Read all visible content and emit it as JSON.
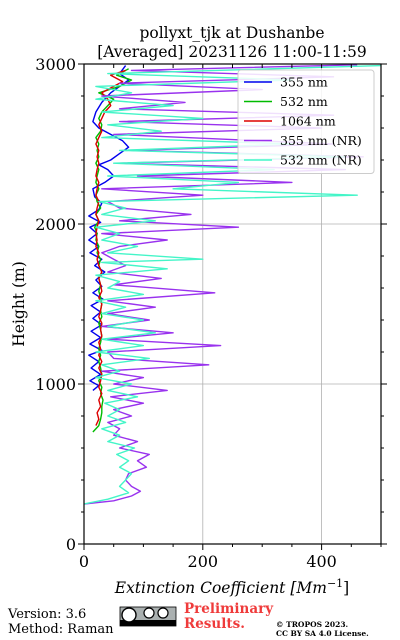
{
  "chart_data": {
    "type": "line",
    "title": "pollyxt_tjk at Dushanbe",
    "subtitle": "[Averaged] 20231126 11:00-11:59",
    "xlabel": "Extinction Coefficient [Mm",
    "xlabel_sup": "−1",
    "xlabel_end": "]",
    "ylabel": "Height (m)",
    "xlim": [
      0,
      500
    ],
    "ylim": [
      0,
      3000
    ],
    "xticks": [
      "0",
      "200",
      "400"
    ],
    "xtick_values": [
      0,
      200,
      400
    ],
    "yticks": [
      "0",
      "1000",
      "2000",
      "3000"
    ],
    "ytick_values": [
      0,
      1000,
      2000,
      3000
    ],
    "grid": true,
    "legend_position": "top-right",
    "series": [
      {
        "name": "355 nm",
        "color": "#0000ee",
        "points": [
          [
            15,
            960
          ],
          [
            25,
            990
          ],
          [
            10,
            1020
          ],
          [
            28,
            1060
          ],
          [
            12,
            1100
          ],
          [
            25,
            1140
          ],
          [
            8,
            1180
          ],
          [
            30,
            1210
          ],
          [
            10,
            1250
          ],
          [
            28,
            1290
          ],
          [
            12,
            1330
          ],
          [
            30,
            1370
          ],
          [
            15,
            1410
          ],
          [
            28,
            1450
          ],
          [
            12,
            1490
          ],
          [
            32,
            1530
          ],
          [
            15,
            1570
          ],
          [
            30,
            1610
          ],
          [
            20,
            1650
          ],
          [
            35,
            1700
          ],
          [
            18,
            1740
          ],
          [
            30,
            1780
          ],
          [
            10,
            1820
          ],
          [
            25,
            1860
          ],
          [
            8,
            1900
          ],
          [
            22,
            1940
          ],
          [
            10,
            1980
          ],
          [
            28,
            2010
          ],
          [
            8,
            2050
          ],
          [
            25,
            2090
          ],
          [
            30,
            2130
          ],
          [
            18,
            2170
          ],
          [
            15,
            2220
          ],
          [
            35,
            2260
          ],
          [
            50,
            2300
          ],
          [
            40,
            2340
          ],
          [
            25,
            2370
          ],
          [
            45,
            2400
          ],
          [
            60,
            2440
          ],
          [
            75,
            2480
          ],
          [
            65,
            2520
          ],
          [
            45,
            2560
          ],
          [
            25,
            2600
          ],
          [
            15,
            2640
          ],
          [
            20,
            2700
          ],
          [
            30,
            2760
          ],
          [
            45,
            2820
          ],
          [
            60,
            2860
          ],
          [
            75,
            2900
          ],
          [
            60,
            2940
          ],
          [
            70,
            2990
          ]
        ]
      },
      {
        "name": "532 nm",
        "color": "#00bb00",
        "points": [
          [
            15,
            700
          ],
          [
            25,
            740
          ],
          [
            28,
            780
          ],
          [
            30,
            820
          ],
          [
            30,
            860
          ],
          [
            32,
            900
          ],
          [
            28,
            940
          ],
          [
            30,
            980
          ],
          [
            25,
            1020
          ],
          [
            30,
            1060
          ],
          [
            28,
            1100
          ],
          [
            25,
            1140
          ],
          [
            28,
            1180
          ],
          [
            25,
            1220
          ],
          [
            28,
            1260
          ],
          [
            30,
            1300
          ],
          [
            28,
            1340
          ],
          [
            25,
            1380
          ],
          [
            30,
            1420
          ],
          [
            28,
            1460
          ],
          [
            30,
            1500
          ],
          [
            28,
            1540
          ],
          [
            25,
            1580
          ],
          [
            28,
            1620
          ],
          [
            25,
            1660
          ],
          [
            30,
            1700
          ],
          [
            25,
            1740
          ],
          [
            28,
            1780
          ],
          [
            22,
            1820
          ],
          [
            25,
            1860
          ],
          [
            20,
            1900
          ],
          [
            22,
            1940
          ],
          [
            18,
            1980
          ],
          [
            25,
            2020
          ],
          [
            20,
            2060
          ],
          [
            28,
            2100
          ],
          [
            22,
            2140
          ],
          [
            20,
            2180
          ],
          [
            25,
            2220
          ],
          [
            20,
            2260
          ],
          [
            22,
            2300
          ],
          [
            25,
            2340
          ],
          [
            20,
            2380
          ],
          [
            25,
            2420
          ],
          [
            22,
            2460
          ],
          [
            25,
            2500
          ],
          [
            20,
            2540
          ],
          [
            28,
            2580
          ],
          [
            30,
            2620
          ],
          [
            25,
            2660
          ],
          [
            30,
            2700
          ],
          [
            40,
            2740
          ],
          [
            50,
            2780
          ],
          [
            25,
            2820
          ],
          [
            60,
            2860
          ],
          [
            80,
            2900
          ],
          [
            55,
            2930
          ],
          [
            75,
            2970
          ]
        ]
      },
      {
        "name": "1064 nm",
        "color": "#dd0000",
        "points": [
          [
            20,
            740
          ],
          [
            25,
            780
          ],
          [
            22,
            820
          ],
          [
            28,
            860
          ],
          [
            25,
            900
          ],
          [
            30,
            940
          ],
          [
            25,
            980
          ],
          [
            28,
            1020
          ],
          [
            30,
            1060
          ],
          [
            25,
            1100
          ],
          [
            30,
            1140
          ],
          [
            25,
            1180
          ],
          [
            28,
            1220
          ],
          [
            25,
            1260
          ],
          [
            30,
            1300
          ],
          [
            28,
            1340
          ],
          [
            30,
            1380
          ],
          [
            25,
            1420
          ],
          [
            28,
            1460
          ],
          [
            30,
            1500
          ],
          [
            25,
            1540
          ],
          [
            30,
            1580
          ],
          [
            28,
            1620
          ],
          [
            25,
            1660
          ],
          [
            30,
            1700
          ],
          [
            25,
            1740
          ],
          [
            22,
            1780
          ],
          [
            25,
            1820
          ],
          [
            20,
            1860
          ],
          [
            22,
            1900
          ],
          [
            20,
            1940
          ],
          [
            22,
            1980
          ],
          [
            25,
            2020
          ],
          [
            20,
            2060
          ],
          [
            22,
            2100
          ],
          [
            25,
            2140
          ],
          [
            20,
            2180
          ],
          [
            22,
            2220
          ],
          [
            25,
            2260
          ],
          [
            20,
            2300
          ],
          [
            22,
            2340
          ],
          [
            25,
            2380
          ],
          [
            22,
            2420
          ],
          [
            25,
            2460
          ],
          [
            20,
            2500
          ],
          [
            25,
            2540
          ],
          [
            30,
            2580
          ],
          [
            25,
            2620
          ],
          [
            30,
            2660
          ],
          [
            35,
            2700
          ],
          [
            45,
            2740
          ],
          [
            40,
            2780
          ],
          [
            30,
            2820
          ],
          [
            50,
            2860
          ],
          [
            65,
            2890
          ],
          [
            45,
            2930
          ],
          [
            70,
            2960
          ]
        ]
      },
      {
        "name": "355 nm (NR)",
        "color": "#9932ee",
        "points": [
          [
            0,
            250
          ],
          [
            50,
            270
          ],
          [
            80,
            300
          ],
          [
            95,
            330
          ],
          [
            80,
            360
          ],
          [
            70,
            400
          ],
          [
            75,
            440
          ],
          [
            105,
            480
          ],
          [
            90,
            520
          ],
          [
            110,
            560
          ],
          [
            60,
            600
          ],
          [
            90,
            640
          ],
          [
            50,
            680
          ],
          [
            60,
            720
          ],
          [
            40,
            760
          ],
          [
            80,
            800
          ],
          [
            50,
            840
          ],
          [
            100,
            880
          ],
          [
            45,
            920
          ],
          [
            140,
            960
          ],
          [
            50,
            1000
          ],
          [
            100,
            1040
          ],
          [
            30,
            1080
          ],
          [
            210,
            1120
          ],
          [
            50,
            1160
          ],
          [
            40,
            1200
          ],
          [
            230,
            1240
          ],
          [
            40,
            1280
          ],
          [
            150,
            1320
          ],
          [
            30,
            1360
          ],
          [
            110,
            1400
          ],
          [
            40,
            1440
          ],
          [
            120,
            1480
          ],
          [
            40,
            1520
          ],
          [
            220,
            1570
          ],
          [
            50,
            1620
          ],
          [
            130,
            1660
          ],
          [
            40,
            1700
          ],
          [
            70,
            1740
          ],
          [
            50,
            1780
          ],
          [
            30,
            1820
          ],
          [
            60,
            1860
          ],
          [
            140,
            1900
          ],
          [
            30,
            1940
          ],
          [
            260,
            1980
          ],
          [
            60,
            2020
          ],
          [
            180,
            2060
          ],
          [
            60,
            2100
          ],
          [
            40,
            2140
          ],
          [
            200,
            2180
          ],
          [
            30,
            2220
          ],
          [
            350,
            2260
          ],
          [
            90,
            2300
          ],
          [
            440,
            2340
          ],
          [
            60,
            2380
          ],
          [
            470,
            2420
          ],
          [
            80,
            2460
          ],
          [
            420,
            2500
          ],
          [
            50,
            2560
          ],
          [
            400,
            2600
          ],
          [
            60,
            2640
          ],
          [
            420,
            2680
          ],
          [
            60,
            2720
          ],
          [
            170,
            2760
          ],
          [
            30,
            2800
          ],
          [
            300,
            2840
          ],
          [
            60,
            2880
          ],
          [
            420,
            2920
          ],
          [
            80,
            2960
          ],
          [
            460,
            2995
          ]
        ]
      },
      {
        "name": "532 nm (NR)",
        "color": "#44f5c8",
        "points": [
          [
            0,
            250
          ],
          [
            40,
            280
          ],
          [
            75,
            320
          ],
          [
            60,
            360
          ],
          [
            70,
            400
          ],
          [
            80,
            440
          ],
          [
            60,
            480
          ],
          [
            75,
            520
          ],
          [
            55,
            560
          ],
          [
            85,
            600
          ],
          [
            40,
            640
          ],
          [
            60,
            680
          ],
          [
            30,
            720
          ],
          [
            70,
            760
          ],
          [
            40,
            800
          ],
          [
            60,
            840
          ],
          [
            35,
            880
          ],
          [
            90,
            920
          ],
          [
            40,
            960
          ],
          [
            80,
            1000
          ],
          [
            20,
            1040
          ],
          [
            60,
            1080
          ],
          [
            30,
            1120
          ],
          [
            110,
            1160
          ],
          [
            20,
            1200
          ],
          [
            100,
            1240
          ],
          [
            30,
            1280
          ],
          [
            120,
            1320
          ],
          [
            40,
            1360
          ],
          [
            100,
            1400
          ],
          [
            30,
            1440
          ],
          [
            70,
            1480
          ],
          [
            20,
            1520
          ],
          [
            100,
            1560
          ],
          [
            40,
            1600
          ],
          [
            60,
            1640
          ],
          [
            20,
            1680
          ],
          [
            140,
            1720
          ],
          [
            30,
            1760
          ],
          [
            200,
            1780
          ],
          [
            40,
            1820
          ],
          [
            90,
            1860
          ],
          [
            30,
            1900
          ],
          [
            60,
            1940
          ],
          [
            20,
            1980
          ],
          [
            120,
            2020
          ],
          [
            30,
            2060
          ],
          [
            70,
            2100
          ],
          [
            25,
            2140
          ],
          [
            460,
            2180
          ],
          [
            150,
            2220
          ],
          [
            260,
            2260
          ],
          [
            40,
            2300
          ],
          [
            320,
            2340
          ],
          [
            50,
            2380
          ],
          [
            440,
            2420
          ],
          [
            60,
            2460
          ],
          [
            350,
            2500
          ],
          [
            30,
            2540
          ],
          [
            130,
            2580
          ],
          [
            40,
            2620
          ],
          [
            200,
            2660
          ],
          [
            30,
            2700
          ],
          [
            150,
            2740
          ],
          [
            20,
            2780
          ],
          [
            80,
            2820
          ],
          [
            20,
            2860
          ],
          [
            350,
            2900
          ],
          [
            40,
            2940
          ],
          [
            500,
            2990
          ]
        ]
      }
    ]
  },
  "footer": {
    "version": "Version: 3.6",
    "method": "Method: Raman",
    "preliminary_line1": "Preliminary",
    "preliminary_line2": "Results.",
    "tropos_line1": "© TROPOS 2023.",
    "tropos_line2": "CC BY SA 4.0 License."
  }
}
